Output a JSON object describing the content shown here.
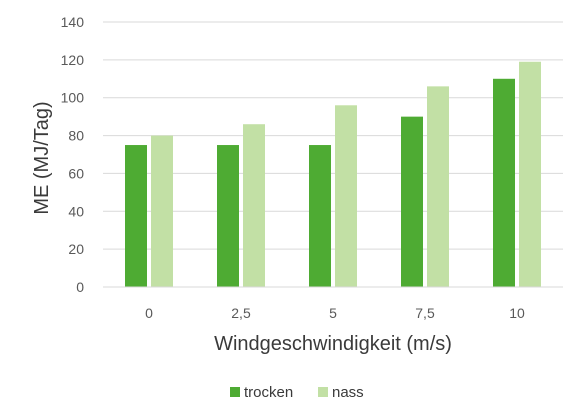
{
  "chart_data": {
    "type": "bar",
    "categories": [
      "0",
      "2,5",
      "5",
      "7,5",
      "10"
    ],
    "series": [
      {
        "name": "trocken",
        "values": [
          75,
          75,
          75,
          90,
          110
        ],
        "color": "#4eab33"
      },
      {
        "name": "nass",
        "values": [
          80,
          86,
          96,
          106,
          119
        ],
        "color": "#c2e0a5"
      }
    ],
    "xlabel": "Windgeschwindigkeit (m/s)",
    "ylabel": "ME (MJ/Tag)",
    "ylim": [
      0,
      140
    ],
    "yticks": [
      0,
      20,
      40,
      60,
      80,
      100,
      120,
      140
    ],
    "grid": true,
    "legend": "bottom-center"
  }
}
